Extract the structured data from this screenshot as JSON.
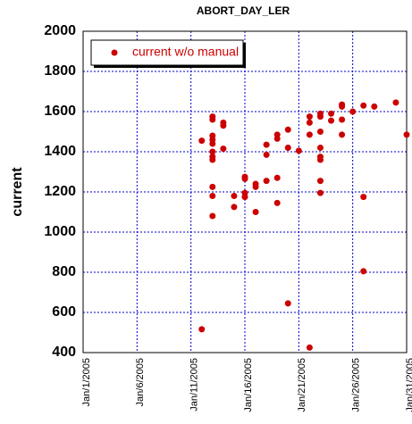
{
  "chart_data": {
    "type": "scatter",
    "title": "ABORT_DAY_LER",
    "y_label": "current",
    "xlim": [
      1,
      31
    ],
    "xticks": [
      {
        "value": 1,
        "label": "Jan/1/2005"
      },
      {
        "value": 6,
        "label": "Jan/6/2005"
      },
      {
        "value": 11,
        "label": "Jan/11/2005"
      },
      {
        "value": 16,
        "label": "Jan/16/2005"
      },
      {
        "value": 21,
        "label": "Jan/21/2005"
      },
      {
        "value": 26,
        "label": "Jan/26/2005"
      },
      {
        "value": 31,
        "label": "Jan/31/2005"
      }
    ],
    "ylim": [
      400,
      2000
    ],
    "yticks": [
      400,
      600,
      800,
      1000,
      1200,
      1400,
      1600,
      1800,
      2000
    ],
    "grid": true,
    "legend": "upper left",
    "series": [
      {
        "name": "current w/o manual",
        "color": "#cc0000",
        "x": [
          12,
          12,
          13,
          13,
          13,
          13,
          13,
          13,
          13,
          13,
          13,
          13,
          13,
          14,
          14,
          14,
          15,
          15,
          16,
          16,
          16,
          16,
          17,
          17,
          17,
          18,
          18,
          18,
          19,
          19,
          19,
          19,
          20,
          20,
          20,
          21,
          22,
          22,
          22,
          22,
          23,
          23,
          23,
          23,
          23,
          23,
          23,
          23,
          24,
          24,
          25,
          25,
          25,
          25,
          26,
          27,
          27,
          27,
          28,
          30,
          31
        ],
        "values": [
          1455,
          516,
          1575,
          1560,
          1480,
          1460,
          1440,
          1400,
          1375,
          1360,
          1225,
          1180,
          1080,
          1545,
          1530,
          1415,
          1180,
          1125,
          1275,
          1265,
          1195,
          1175,
          1240,
          1225,
          1100,
          1435,
          1385,
          1255,
          1485,
          1465,
          1270,
          1145,
          1510,
          1420,
          645,
          1405,
          1575,
          1545,
          1485,
          425,
          1590,
          1575,
          1500,
          1420,
          1375,
          1360,
          1255,
          1195,
          1590,
          1555,
          1635,
          1625,
          1560,
          1485,
          1600,
          1630,
          1175,
          805,
          1625,
          1645,
          1485
        ]
      }
    ]
  }
}
